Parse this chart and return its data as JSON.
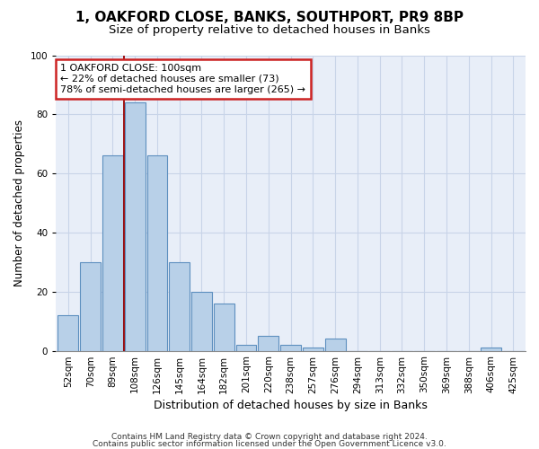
{
  "title1": "1, OAKFORD CLOSE, BANKS, SOUTHPORT, PR9 8BP",
  "title2": "Size of property relative to detached houses in Banks",
  "xlabel": "Distribution of detached houses by size in Banks",
  "ylabel": "Number of detached properties",
  "categories": [
    "52sqm",
    "70sqm",
    "89sqm",
    "108sqm",
    "126sqm",
    "145sqm",
    "164sqm",
    "182sqm",
    "201sqm",
    "220sqm",
    "238sqm",
    "257sqm",
    "276sqm",
    "294sqm",
    "313sqm",
    "332sqm",
    "350sqm",
    "369sqm",
    "388sqm",
    "406sqm",
    "425sqm"
  ],
  "values": [
    12,
    30,
    66,
    84,
    66,
    30,
    20,
    16,
    2,
    5,
    2,
    1,
    4,
    0,
    0,
    0,
    0,
    0,
    0,
    1,
    0
  ],
  "bar_color": "#b8d0e8",
  "bar_edge_color": "#5d8fbf",
  "property_line_x": 2.5,
  "property_line_color": "#990000",
  "annotation_line1": "1 OAKFORD CLOSE: 100sqm",
  "annotation_line2": "← 22% of detached houses are smaller (73)",
  "annotation_line3": "78% of semi-detached houses are larger (265) →",
  "annotation_box_facecolor": "#ffffff",
  "annotation_box_edgecolor": "#cc2222",
  "ylim": [
    0,
    100
  ],
  "yticks": [
    0,
    20,
    40,
    60,
    80,
    100
  ],
  "background_color": "#e8eef8",
  "grid_color": "#c8d4e8",
  "footer1": "Contains HM Land Registry data © Crown copyright and database right 2024.",
  "footer2": "Contains public sector information licensed under the Open Government Licence v3.0.",
  "title1_fontsize": 11,
  "title2_fontsize": 9.5,
  "xlabel_fontsize": 9,
  "ylabel_fontsize": 8.5,
  "tick_fontsize": 7.5,
  "annot_fontsize": 8,
  "footer_fontsize": 6.5
}
